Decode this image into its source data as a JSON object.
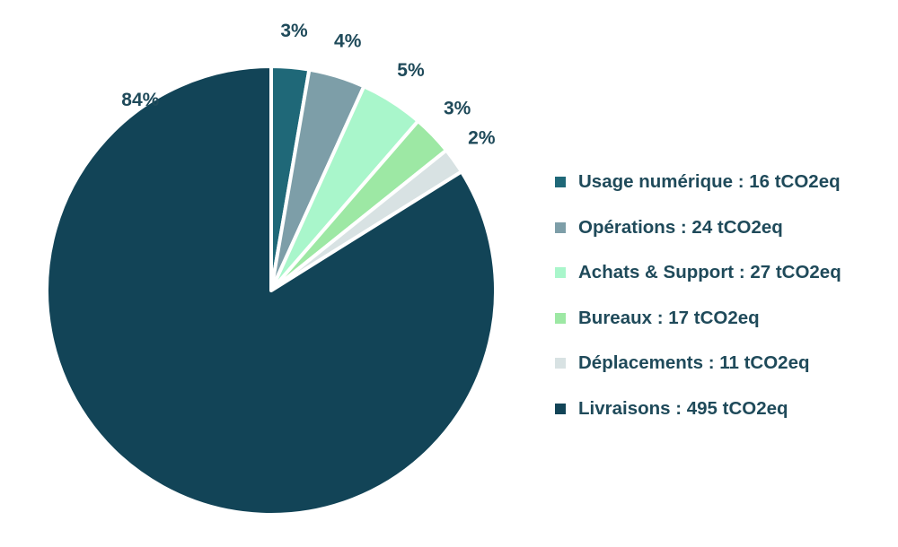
{
  "chart_data": {
    "type": "pie",
    "title": "",
    "unit": "tCO2eq",
    "start_angle_deg": 0,
    "direction": "clockwise",
    "slices": [
      {
        "label": "Usage numérique : 16 tCO2eq",
        "name": "Usage numérique",
        "value": 16,
        "percent_label": "3%",
        "color": "#1f6878"
      },
      {
        "label": "Opérations : 24 tCO2eq",
        "name": "Opérations",
        "value": 24,
        "percent_label": "4%",
        "color": "#7d9ea8"
      },
      {
        "label": "Achats & Support : 27 tCO2eq",
        "name": "Achats & Support",
        "value": 27,
        "percent_label": "5%",
        "color": "#a9f6cb"
      },
      {
        "label": "Bureaux : 17 tCO2eq",
        "name": "Bureaux",
        "value": 17,
        "percent_label": "3%",
        "color": "#9de8a4"
      },
      {
        "label": "Déplacements : 11 tCO2eq",
        "name": "Déplacements",
        "value": 11,
        "percent_label": "2%",
        "color": "#d8e2e3"
      },
      {
        "label": "Livraisons : 495 tCO2eq",
        "name": "Livraisons",
        "value": 495,
        "percent_label": "84%",
        "color": "#124457"
      }
    ],
    "legend_position": "right"
  }
}
